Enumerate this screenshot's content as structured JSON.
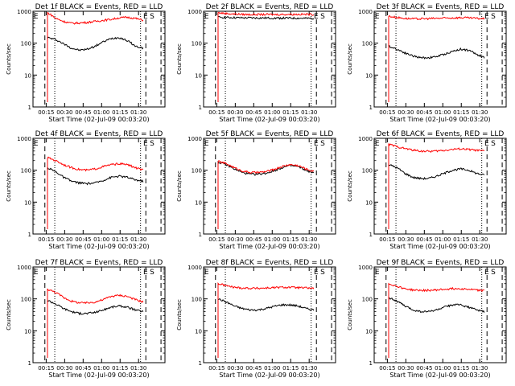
{
  "page": {
    "background": "#ffffff",
    "ink": "#000000",
    "events_color": "#000000",
    "lld_color": "#ff0000"
  },
  "chart_data": [
    {
      "type": "line",
      "title": "Det 1f BLACK = Events, RED = LLD",
      "xlabel": "Start Time (02-Jul-09 00:03:20)",
      "ylabel": "Counts/sec",
      "x_ticks": [
        "00:15",
        "00:30",
        "00:45",
        "01:00",
        "01:15",
        "01:30"
      ],
      "y_ticks": [
        "1",
        "10",
        "100",
        "1000"
      ],
      "ylim": [
        1,
        1000
      ],
      "y_scale": "log",
      "markers": [
        "E",
        "E",
        "S"
      ],
      "series": [
        {
          "name": "Events",
          "color": "#000000",
          "values": [
            150,
            130,
            95,
            70,
            60,
            65,
            80,
            110,
            140,
            150,
            120,
            80,
            70
          ]
        },
        {
          "name": "LLD",
          "color": "#ff0000",
          "values": [
            900,
            600,
            480,
            420,
            430,
            450,
            480,
            520,
            560,
            620,
            650,
            600,
            520
          ]
        }
      ]
    },
    {
      "type": "line",
      "title": "Det 2f BLACK = Events, RED = LLD",
      "xlabel": "Start Time (02-Jul-09 00:03:20)",
      "ylabel": "Counts/sec",
      "x_ticks": [
        "00:15",
        "00:30",
        "00:45",
        "01:00",
        "01:15",
        "01:30"
      ],
      "y_ticks": [
        "1",
        "10",
        "100",
        "1000"
      ],
      "ylim": [
        1,
        1000
      ],
      "y_scale": "log",
      "markers": [
        "E",
        "E",
        "S"
      ],
      "series": [
        {
          "name": "Events",
          "color": "#000000",
          "values": [
            650,
            640,
            630,
            620,
            620,
            615,
            615,
            610,
            610,
            610,
            605,
            600,
            600
          ]
        },
        {
          "name": "LLD",
          "color": "#ff0000",
          "values": [
            900,
            850,
            820,
            800,
            790,
            790,
            790,
            790,
            795,
            800,
            800,
            800,
            800
          ]
        }
      ]
    },
    {
      "type": "line",
      "title": "Det 3f BLACK = Events, RED = LLD",
      "xlabel": "Start Time (02-Jul-09 00:03:20)",
      "ylabel": "Counts/sec",
      "x_ticks": [
        "00:15",
        "00:30",
        "00:45",
        "01:00",
        "01:15",
        "01:30"
      ],
      "y_ticks": [
        "1",
        "10",
        "100",
        "1000"
      ],
      "ylim": [
        1,
        1000
      ],
      "y_scale": "log",
      "markers": [
        "E",
        "E",
        "S"
      ],
      "series": [
        {
          "name": "Events",
          "color": "#000000",
          "values": [
            80,
            65,
            50,
            40,
            35,
            35,
            38,
            45,
            55,
            65,
            60,
            45,
            35
          ]
        },
        {
          "name": "LLD",
          "color": "#ff0000",
          "values": [
            700,
            640,
            600,
            580,
            580,
            590,
            600,
            610,
            620,
            630,
            620,
            600,
            580
          ]
        }
      ]
    },
    {
      "type": "line",
      "title": "Det 4f BLACK = Events, RED = LLD",
      "xlabel": "Start Time (02-Jul-09 00:03:20)",
      "ylabel": "Counts/sec",
      "x_ticks": [
        "00:15",
        "00:30",
        "00:45",
        "01:00",
        "01:15",
        "01:30"
      ],
      "y_ticks": [
        "1",
        "10",
        "100",
        "1000"
      ],
      "ylim": [
        1,
        1000
      ],
      "y_scale": "log",
      "markers": [
        "E",
        "E",
        "S"
      ],
      "series": [
        {
          "name": "Events",
          "color": "#000000",
          "values": [
            120,
            90,
            60,
            45,
            40,
            38,
            40,
            48,
            60,
            65,
            60,
            50,
            45
          ]
        },
        {
          "name": "LLD",
          "color": "#ff0000",
          "values": [
            250,
            200,
            150,
            120,
            105,
            100,
            110,
            130,
            150,
            160,
            150,
            120,
            100
          ]
        }
      ]
    },
    {
      "type": "line",
      "title": "Det 5f BLACK = Events, RED = LLD",
      "xlabel": "Start Time (02-Jul-09 00:03:20)",
      "ylabel": "Counts/sec",
      "x_ticks": [
        "00:15",
        "00:30",
        "00:45",
        "01:00",
        "01:15",
        "01:30"
      ],
      "y_ticks": [
        "1",
        "10",
        "100",
        "1000"
      ],
      "ylim": [
        1,
        1000
      ],
      "y_scale": "log",
      "markers": [
        "E",
        "E",
        "S"
      ],
      "series": [
        {
          "name": "Events",
          "color": "#000000",
          "values": [
            180,
            150,
            110,
            85,
            75,
            75,
            80,
            95,
            120,
            140,
            130,
            100,
            80
          ]
        },
        {
          "name": "LLD",
          "color": "#ff0000",
          "values": [
            190,
            160,
            120,
            95,
            85,
            85,
            90,
            105,
            130,
            150,
            140,
            110,
            90
          ]
        }
      ]
    },
    {
      "type": "line",
      "title": "Det 6f BLACK = Events, RED = LLD",
      "xlabel": "Start Time (02-Jul-09 00:03:20)",
      "ylabel": "Counts/sec",
      "x_ticks": [
        "00:15",
        "00:30",
        "00:45",
        "01:00",
        "01:15",
        "01:30"
      ],
      "y_ticks": [
        "1",
        "10",
        "100",
        "1000"
      ],
      "ylim": [
        1,
        1000
      ],
      "y_scale": "log",
      "markers": [
        "E",
        "E",
        "S"
      ],
      "series": [
        {
          "name": "Events",
          "color": "#000000",
          "values": [
            150,
            120,
            80,
            60,
            55,
            55,
            65,
            80,
            100,
            110,
            100,
            80,
            70
          ]
        },
        {
          "name": "LLD",
          "color": "#ff0000",
          "values": [
            650,
            550,
            480,
            430,
            400,
            390,
            400,
            420,
            450,
            470,
            450,
            420,
            400
          ]
        }
      ]
    },
    {
      "type": "line",
      "title": "Det 7f BLACK = Events, RED = LLD",
      "xlabel": "Start Time (02-Jul-09 00:03:20)",
      "ylabel": "Counts/sec",
      "x_ticks": [
        "00:15",
        "00:30",
        "00:45",
        "01:00",
        "01:15",
        "01:30"
      ],
      "y_ticks": [
        "1",
        "10",
        "100",
        "1000"
      ],
      "ylim": [
        1,
        1000
      ],
      "y_scale": "log",
      "markers": [
        "E",
        "E",
        "S"
      ],
      "series": [
        {
          "name": "Events",
          "color": "#000000",
          "values": [
            90,
            70,
            50,
            40,
            35,
            35,
            38,
            45,
            55,
            60,
            55,
            45,
            40
          ]
        },
        {
          "name": "LLD",
          "color": "#ff0000",
          "values": [
            200,
            160,
            110,
            85,
            75,
            75,
            80,
            95,
            120,
            130,
            120,
            95,
            80
          ]
        }
      ]
    },
    {
      "type": "line",
      "title": "Det 8f BLACK = Events, RED = LLD",
      "xlabel": "Start Time (02-Jul-09 00:03:20)",
      "ylabel": "Counts/sec",
      "x_ticks": [
        "00:15",
        "00:30",
        "00:45",
        "01:00",
        "01:15",
        "01:30"
      ],
      "y_ticks": [
        "1",
        "10",
        "100",
        "1000"
      ],
      "ylim": [
        1,
        1000
      ],
      "y_scale": "log",
      "markers": [
        "E",
        "E",
        "S"
      ],
      "series": [
        {
          "name": "Events",
          "color": "#000000",
          "values": [
            100,
            80,
            60,
            50,
            45,
            45,
            50,
            58,
            65,
            65,
            60,
            50,
            45
          ]
        },
        {
          "name": "LLD",
          "color": "#ff0000",
          "values": [
            300,
            260,
            230,
            220,
            215,
            215,
            220,
            225,
            230,
            230,
            225,
            220,
            215
          ]
        }
      ]
    },
    {
      "type": "line",
      "title": "Det 9f BLACK = Events, RED = LLD",
      "xlabel": "Start Time (02-Jul-09 00:03:20)",
      "ylabel": "Counts/sec",
      "x_ticks": [
        "00:15",
        "00:30",
        "00:45",
        "01:00",
        "01:15",
        "01:30"
      ],
      "y_ticks": [
        "1",
        "10",
        "100",
        "1000"
      ],
      "ylim": [
        1,
        1000
      ],
      "y_scale": "log",
      "markers": [
        "E",
        "E",
        "S"
      ],
      "series": [
        {
          "name": "Events",
          "color": "#000000",
          "values": [
            110,
            85,
            60,
            45,
            40,
            40,
            45,
            55,
            65,
            65,
            55,
            45,
            40
          ]
        },
        {
          "name": "LLD",
          "color": "#ff0000",
          "values": [
            300,
            250,
            210,
            190,
            185,
            185,
            190,
            200,
            210,
            210,
            200,
            190,
            180
          ]
        }
      ]
    }
  ]
}
